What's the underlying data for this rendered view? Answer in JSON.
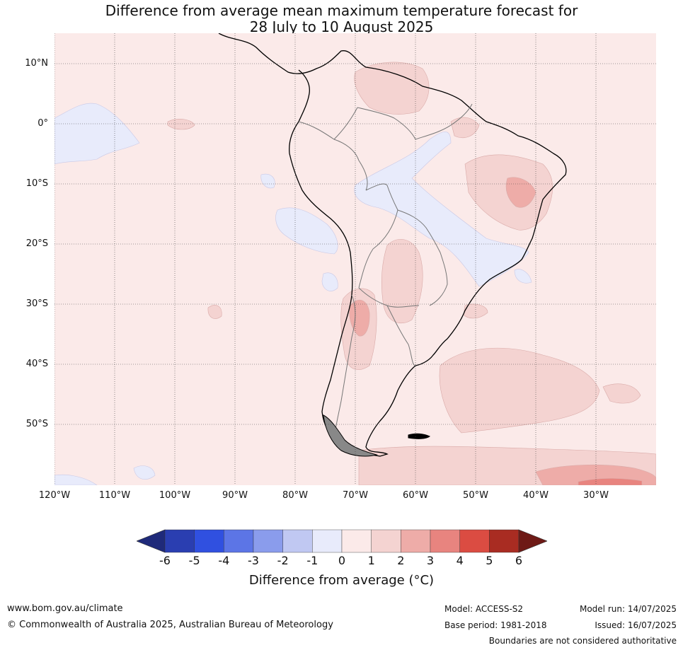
{
  "title_line1": "Difference from average mean maximum temperature forecast for",
  "title_line2": "28 July to 10 August 2025",
  "lat_labels": [
    "10°N",
    "0°",
    "10°S",
    "20°S",
    "30°S",
    "40°S",
    "50°S"
  ],
  "lon_labels": [
    "120°W",
    "110°W",
    "100°W",
    "90°W",
    "80°W",
    "70°W",
    "60°W",
    "50°W",
    "40°W",
    "30°W"
  ],
  "colorbar": {
    "ticks": [
      "-6",
      "-5",
      "-4",
      "-3",
      "-2",
      "-1",
      "0",
      "1",
      "2",
      "3",
      "4",
      "5",
      "6"
    ],
    "colors": [
      "#1f2a7a",
      "#2a3eb1",
      "#3050e0",
      "#5c75e6",
      "#8a9cec",
      "#c0c8f2",
      "#e8ebfb",
      "#fbeae9",
      "#f4d3d1",
      "#eeaca8",
      "#e8847f",
      "#db4c42",
      "#a92c22",
      "#6e1a16"
    ],
    "label": "Difference from average (°C)"
  },
  "footer": {
    "website": "www.bom.gov.au/climate",
    "copyright": "© Commonwealth of Australia 2025, Australian Bureau of Meteorology",
    "model": "Model: ACCESS-S2",
    "base_period": "Base period: 1981-2018",
    "model_run": "Model run: 14/07/2025",
    "issued": "Issued: 16/07/2025",
    "boundaries_note": "Boundaries are not considered authoritative"
  }
}
